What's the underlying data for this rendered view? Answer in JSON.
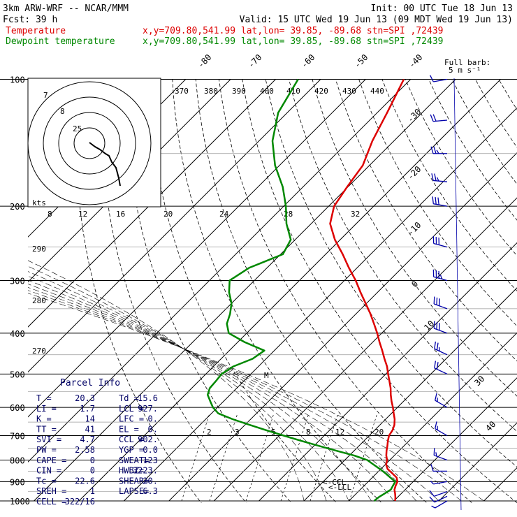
{
  "header": {
    "line1_left": "3km ARW-WRF -- NCAR/MMM",
    "line1_right": "Init: 00 UTC Tue 18 Jun 13",
    "line2_left": "Fcst:    39 h",
    "line2_right": "Valid: 15 UTC Wed 19 Jun 13 (09 MDT Wed 19 Jun 13)",
    "temp_label": "Temperature",
    "temp_meta": "x,y=709.80,541.99   lat,lon= 39.85, -89.68   stn=SPI ,72439",
    "dew_label": "Dewpoint temperature",
    "dew_meta": "x,y=709.80,541.99   lat,lon= 39.85, -89.68   stn=SPI ,72439"
  },
  "colors": {
    "temperature": "#dd0000",
    "dewpoint": "#008800",
    "wind": "#0000aa",
    "parcel_text": "#000066"
  },
  "wind_legend": {
    "title": "Full barb:",
    "value": "5 m s⁻¹"
  },
  "hodograph": {
    "unit_label": "kts",
    "ring_labels": [
      "25",
      "8",
      "7"
    ],
    "bottom_tick_labels": [
      "8",
      "12",
      "16",
      "20",
      "24",
      "28",
      "32"
    ]
  },
  "theta_labels": [
    "370",
    "380",
    "390",
    "400",
    "410",
    "420",
    "430",
    "440",
    "290",
    "280",
    "270"
  ],
  "mixing_ratio_labels": [
    "2",
    "3",
    "5",
    "8",
    "12",
    "20"
  ],
  "lcl_labels": [
    "<-LCL",
    "<-CCL"
  ],
  "m_marker": "M",
  "parcel_info": {
    "title": "Parcel Info",
    "rows": [
      [
        "T  =",
        "20.3",
        "Td =",
        "15.6"
      ],
      [
        "LI =",
        "1.7",
        "LCL =",
        "927."
      ],
      [
        "K  =",
        "14",
        "LFC =",
        "0."
      ],
      [
        "TT =",
        "41",
        "EL  =",
        "0."
      ],
      [
        "SVI =",
        "4.7",
        "CCL =",
        "902."
      ],
      [
        "PW =",
        "2.58",
        "YGP =",
        "0.0"
      ],
      [
        "CAPE =",
        "0",
        "SWEAT=",
        "123"
      ],
      [
        "CIN =",
        "0",
        "HWBZ=",
        "3223."
      ],
      [
        "Tc =",
        "22.6",
        "SHEAR=",
        "20."
      ],
      [
        "SREH =",
        "1",
        "LAPSE=",
        "6.3"
      ],
      [
        "CELL =",
        "322/16",
        "",
        ""
      ]
    ]
  },
  "chart_data": {
    "type": "line",
    "chart_kind": "Skew-T log-P",
    "pressure_levels_hpa": [
      1000,
      900,
      800,
      700,
      600,
      500,
      400,
      300,
      200,
      100
    ],
    "isotherm_labels_c": [
      -80,
      -70,
      -60,
      -50,
      -40,
      -30,
      -20,
      -10,
      0,
      10,
      30,
      40
    ],
    "series": [
      {
        "name": "Temperature",
        "color": "#dd0000",
        "points_p_t": [
          [
            1000,
            20.3
          ],
          [
            980,
            19.5
          ],
          [
            960,
            18.6
          ],
          [
            940,
            17.6
          ],
          [
            920,
            17.0
          ],
          [
            900,
            16.5
          ],
          [
            880,
            15.4
          ],
          [
            860,
            13.5
          ],
          [
            840,
            11.5
          ],
          [
            820,
            10.2
          ],
          [
            800,
            9.4
          ],
          [
            780,
            8.2
          ],
          [
            760,
            7.2
          ],
          [
            740,
            6.3
          ],
          [
            720,
            5.3
          ],
          [
            700,
            4.4
          ],
          [
            680,
            4.0
          ],
          [
            660,
            3.2
          ],
          [
            640,
            2.0
          ],
          [
            620,
            0.5
          ],
          [
            600,
            -1.0
          ],
          [
            580,
            -2.7
          ],
          [
            560,
            -4.3
          ],
          [
            540,
            -5.8
          ],
          [
            520,
            -7.6
          ],
          [
            500,
            -9.5
          ],
          [
            480,
            -11.4
          ],
          [
            460,
            -13.7
          ],
          [
            440,
            -16.0
          ],
          [
            420,
            -18.5
          ],
          [
            400,
            -21.0
          ],
          [
            380,
            -23.8
          ],
          [
            360,
            -26.8
          ],
          [
            340,
            -30.2
          ],
          [
            320,
            -33.8
          ],
          [
            300,
            -37.5
          ],
          [
            280,
            -41.8
          ],
          [
            260,
            -46.2
          ],
          [
            240,
            -51.2
          ],
          [
            220,
            -55.8
          ],
          [
            200,
            -58.8
          ],
          [
            180,
            -60.2
          ],
          [
            160,
            -61.5
          ],
          [
            140,
            -64.8
          ],
          [
            120,
            -67.8
          ],
          [
            100,
            -71.5
          ]
        ]
      },
      {
        "name": "Dewpoint temperature",
        "color": "#008800",
        "points_p_t": [
          [
            1000,
            15.6
          ],
          [
            980,
            15.8
          ],
          [
            960,
            16.3
          ],
          [
            940,
            16.8
          ],
          [
            920,
            16.4
          ],
          [
            900,
            16.0
          ],
          [
            880,
            14.0
          ],
          [
            860,
            12.0
          ],
          [
            840,
            9.8
          ],
          [
            820,
            7.4
          ],
          [
            800,
            5.0
          ],
          [
            780,
            1.0
          ],
          [
            760,
            -4.0
          ],
          [
            740,
            -9.0
          ],
          [
            720,
            -14.0
          ],
          [
            700,
            -19.0
          ],
          [
            680,
            -24.0
          ],
          [
            660,
            -29.0
          ],
          [
            640,
            -34.0
          ],
          [
            620,
            -38.5
          ],
          [
            600,
            -41.0
          ],
          [
            580,
            -43.0
          ],
          [
            560,
            -45.0
          ],
          [
            540,
            -46.0
          ],
          [
            520,
            -46.2
          ],
          [
            500,
            -46.5
          ],
          [
            480,
            -45.6
          ],
          [
            460,
            -43.0
          ],
          [
            440,
            -42.2
          ],
          [
            420,
            -48.5
          ],
          [
            400,
            -54.0
          ],
          [
            380,
            -56.5
          ],
          [
            360,
            -58.0
          ],
          [
            340,
            -60.0
          ],
          [
            320,
            -63.0
          ],
          [
            300,
            -65.5
          ],
          [
            280,
            -64.0
          ],
          [
            260,
            -59.5
          ],
          [
            240,
            -61.0
          ],
          [
            220,
            -65.5
          ],
          [
            200,
            -69.5
          ],
          [
            180,
            -74.5
          ],
          [
            160,
            -81.0
          ],
          [
            140,
            -87.0
          ],
          [
            120,
            -92.0
          ],
          [
            100,
            -95.0
          ]
        ]
      }
    ],
    "wind_barbs": [
      {
        "p": 1000,
        "dir": 240,
        "spd_ms": 4
      },
      {
        "p": 975,
        "dir": 245,
        "spd_ms": 6
      },
      {
        "p": 950,
        "dir": 250,
        "spd_ms": 7
      },
      {
        "p": 900,
        "dir": 260,
        "spd_ms": 4
      },
      {
        "p": 850,
        "dir": 270,
        "spd_ms": 6
      },
      {
        "p": 800,
        "dir": 290,
        "spd_ms": 8
      },
      {
        "p": 700,
        "dir": 300,
        "spd_ms": 8
      },
      {
        "p": 600,
        "dir": 300,
        "spd_ms": 9
      },
      {
        "p": 500,
        "dir": 295,
        "spd_ms": 12
      },
      {
        "p": 450,
        "dir": 295,
        "spd_ms": 13
      },
      {
        "p": 400,
        "dir": 290,
        "spd_ms": 15
      },
      {
        "p": 350,
        "dir": 290,
        "spd_ms": 16
      },
      {
        "p": 300,
        "dir": 285,
        "spd_ms": 18
      },
      {
        "p": 250,
        "dir": 285,
        "spd_ms": 16
      },
      {
        "p": 200,
        "dir": 280,
        "spd_ms": 15
      },
      {
        "p": 175,
        "dir": 275,
        "spd_ms": 14
      },
      {
        "p": 150,
        "dir": 270,
        "spd_ms": 13
      },
      {
        "p": 125,
        "dir": 265,
        "spd_ms": 10
      },
      {
        "p": 100,
        "dir": 260,
        "spd_ms": 7
      }
    ]
  }
}
